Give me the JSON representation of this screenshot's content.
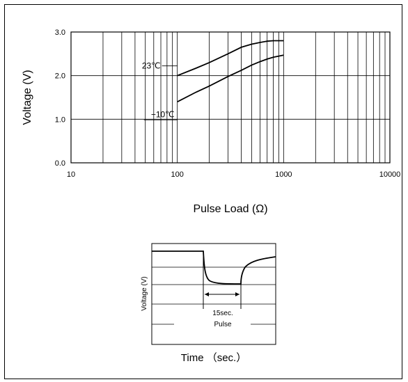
{
  "chart_data": [
    {
      "type": "line",
      "title": "",
      "xlabel": "Pulse Load (Ω)",
      "ylabel": "Voltage (V)",
      "xscale": "log",
      "xlim": [
        10,
        10000
      ],
      "ylim": [
        0.0,
        3.0
      ],
      "xticks": [
        "10",
        "100",
        "1000",
        "10000"
      ],
      "yticks": [
        "0.0",
        "1.0",
        "2.0",
        "3.0"
      ],
      "grid": true,
      "series": [
        {
          "name": "23℃",
          "x": [
            100,
            150,
            200,
            300,
            400,
            500,
            600,
            700,
            800,
            1000
          ],
          "y": [
            2.0,
            2.17,
            2.3,
            2.5,
            2.65,
            2.72,
            2.76,
            2.79,
            2.8,
            2.8
          ]
        },
        {
          "name": "−10℃",
          "x": [
            100,
            150,
            200,
            300,
            400,
            500,
            600,
            700,
            800,
            1000
          ],
          "y": [
            1.4,
            1.62,
            1.76,
            1.98,
            2.12,
            2.24,
            2.32,
            2.38,
            2.42,
            2.47
          ]
        }
      ]
    },
    {
      "type": "line",
      "title": "",
      "xlabel": "Time （sec.）",
      "ylabel": "Voltage (V)",
      "annotations": [
        "15sec.",
        "Pulse"
      ]
    }
  ]
}
